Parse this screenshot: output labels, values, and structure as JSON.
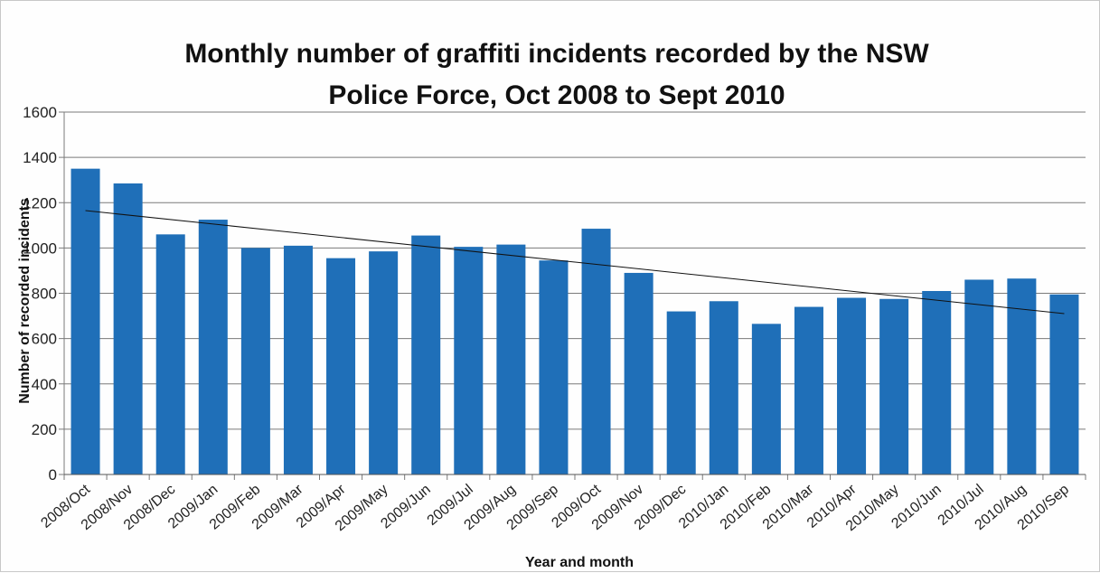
{
  "chart_data": {
    "type": "bar",
    "title_lines": [
      "Monthly number of graffiti incidents recorded by the NSW",
      "Police Force, Oct 2008 to Sept 2010"
    ],
    "xlabel": "Year and month",
    "ylabel": "Number of recorded incidents",
    "ylim": [
      0,
      1600
    ],
    "yticks": [
      "0",
      "200",
      "400",
      "600",
      "800",
      "1000",
      "1200",
      "1400",
      "1600"
    ],
    "grid": true,
    "legend": "none",
    "bar_color": "#1f6fb8",
    "trendline": {
      "type": "linear",
      "color": "#111111",
      "start": 1165,
      "end": 710
    },
    "categories": [
      "2008/Oct",
      "2008/Nov",
      "2008/Dec",
      "2009/Jan",
      "2009/Feb",
      "2009/Mar",
      "2009/Apr",
      "2009/May",
      "2009/Jun",
      "2009/Jul",
      "2009/Aug",
      "2009/Sep",
      "2009/Oct",
      "2009/Nov",
      "2009/Dec",
      "2010/Jan",
      "2010/Feb",
      "2010/Mar",
      "2010/Apr",
      "2010/May",
      "2010/Jun",
      "2010/Jul",
      "2010/Aug",
      "2010/Sep"
    ],
    "values": [
      1350,
      1285,
      1060,
      1125,
      1000,
      1010,
      955,
      985,
      1055,
      1005,
      1015,
      945,
      1085,
      890,
      720,
      765,
      665,
      740,
      780,
      775,
      810,
      860,
      865,
      795
    ]
  }
}
